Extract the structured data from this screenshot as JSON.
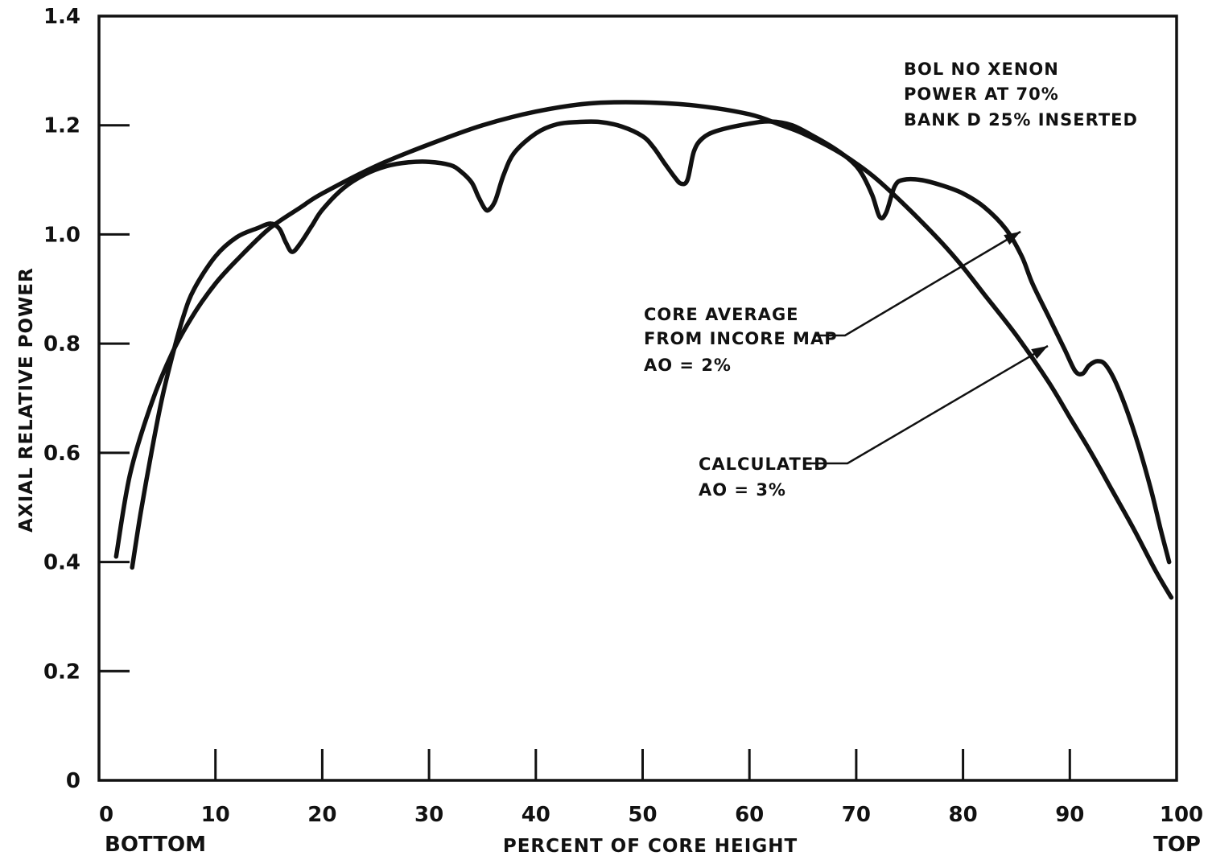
{
  "chart_data": {
    "type": "line",
    "title": "",
    "xlabel": "PERCENT OF CORE HEIGHT",
    "ylabel": "AXIAL RELATIVE POWER",
    "xlim": [
      0,
      100
    ],
    "ylim": [
      0,
      1.4
    ],
    "x_ticks": [
      0,
      10,
      20,
      30,
      40,
      50,
      60,
      70,
      80,
      90,
      100
    ],
    "x_tick_labels": [
      "0",
      "10",
      "20",
      "30",
      "40",
      "50",
      "60",
      "70",
      "80",
      "90",
      "100"
    ],
    "y_ticks": [
      0,
      0.2,
      0.4,
      0.6,
      0.8,
      1.0,
      1.2,
      1.4
    ],
    "y_tick_labels": [
      "0",
      "0.2",
      "0.4",
      "0.6",
      "0.8",
      "1.0",
      "1.2",
      "1.4"
    ],
    "x_end_labels": {
      "left": "BOTTOM",
      "right": "TOP"
    },
    "grid": false,
    "conditions": [
      "BOL NO XENON",
      "POWER AT 70%",
      "BANK D 25% INSERTED"
    ],
    "series": [
      {
        "label_lines": [
          "CORE AVERAGE",
          "FROM INCORE MAP",
          "AO = 2%"
        ],
        "x": [
          2.2,
          3,
          4,
          5,
          6,
          7,
          8,
          10,
          12,
          14,
          15.2,
          16,
          16.6,
          17.2,
          18,
          19,
          20,
          22,
          24,
          26,
          28,
          30,
          32,
          33,
          34,
          34.6,
          35.2,
          35.6,
          36.2,
          37,
          38,
          40,
          42,
          44,
          46,
          48,
          50,
          51,
          52,
          53,
          53.6,
          54.2,
          54.8,
          55.6,
          57,
          60,
          62,
          64,
          66,
          68,
          69.5,
          70.5,
          71.5,
          72.2,
          72.8,
          73.6,
          74.4,
          76,
          78,
          80,
          82,
          84,
          85.5,
          86.5,
          88,
          89.5,
          90.5,
          91.2,
          91.8,
          92.6,
          93.4,
          94.5,
          96,
          97.5,
          98.5,
          99.3
        ],
        "y": [
          0.39,
          0.49,
          0.6,
          0.7,
          0.78,
          0.85,
          0.9,
          0.96,
          0.995,
          1.012,
          1.02,
          1.01,
          0.985,
          0.968,
          0.985,
          1.015,
          1.045,
          1.085,
          1.11,
          1.125,
          1.132,
          1.133,
          1.127,
          1.115,
          1.095,
          1.07,
          1.048,
          1.045,
          1.062,
          1.11,
          1.15,
          1.185,
          1.202,
          1.206,
          1.206,
          1.198,
          1.18,
          1.16,
          1.132,
          1.105,
          1.093,
          1.1,
          1.152,
          1.176,
          1.19,
          1.203,
          1.207,
          1.2,
          1.18,
          1.157,
          1.135,
          1.112,
          1.072,
          1.032,
          1.04,
          1.088,
          1.1,
          1.1,
          1.09,
          1.075,
          1.05,
          1.01,
          0.96,
          0.91,
          0.85,
          0.79,
          0.75,
          0.745,
          0.76,
          0.768,
          0.76,
          0.72,
          0.64,
          0.54,
          0.46,
          0.4
        ]
      },
      {
        "label_lines": [
          "CALCULATED",
          "AO = 3%"
        ],
        "x": [
          0.7,
          2,
          4,
          6,
          8,
          10,
          12,
          15,
          18,
          20,
          25,
          30,
          35,
          40,
          45,
          50,
          55,
          60,
          63,
          65,
          68,
          70,
          72,
          75,
          78,
          80,
          82,
          85,
          88,
          90,
          92,
          94,
          96,
          98,
          99.5
        ],
        "y": [
          0.41,
          0.56,
          0.69,
          0.785,
          0.855,
          0.91,
          0.953,
          1.01,
          1.05,
          1.075,
          1.125,
          1.165,
          1.2,
          1.225,
          1.24,
          1.242,
          1.236,
          1.22,
          1.2,
          1.185,
          1.155,
          1.13,
          1.1,
          1.045,
          0.985,
          0.94,
          0.89,
          0.815,
          0.73,
          0.665,
          0.6,
          0.53,
          0.46,
          0.385,
          0.335
        ]
      }
    ]
  }
}
